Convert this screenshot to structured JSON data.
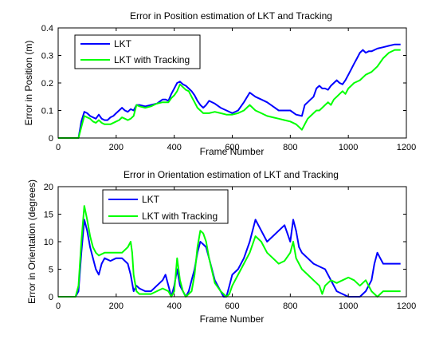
{
  "colors": {
    "lkt": "#0000ff",
    "tracking": "#00ff00"
  },
  "chart_data": [
    {
      "type": "line",
      "title": "Error in Position estimation of LKT and Tracking",
      "xlabel": "Frame Number",
      "ylabel": "Error in Position (m)",
      "xlim": [
        0,
        1200
      ],
      "ylim": [
        0,
        0.4
      ],
      "xticks": [
        "0",
        "200",
        "400",
        "600",
        "800",
        "1000",
        "1200"
      ],
      "yticks": [
        "0",
        "0.1",
        "0.2",
        "0.3",
        "0.4"
      ],
      "legend_position": "top-left",
      "series": [
        {
          "name": "LKT",
          "color": "#0000ff",
          "x": [
            0,
            50,
            70,
            80,
            90,
            100,
            110,
            120,
            130,
            140,
            150,
            160,
            170,
            180,
            190,
            200,
            210,
            220,
            230,
            240,
            250,
            260,
            270,
            280,
            300,
            320,
            340,
            360,
            370,
            380,
            390,
            400,
            410,
            420,
            430,
            440,
            450,
            460,
            470,
            480,
            490,
            500,
            510,
            520,
            540,
            560,
            580,
            600,
            620,
            640,
            660,
            680,
            700,
            720,
            740,
            760,
            780,
            800,
            820,
            840,
            850,
            860,
            870,
            880,
            890,
            900,
            910,
            920,
            930,
            940,
            950,
            960,
            970,
            980,
            990,
            1000,
            1010,
            1020,
            1030,
            1040,
            1050,
            1060,
            1070,
            1080,
            1090,
            1100,
            1120,
            1140,
            1160,
            1180
          ],
          "y": [
            0.0,
            0.0,
            0.0,
            0.06,
            0.095,
            0.09,
            0.08,
            0.075,
            0.07,
            0.085,
            0.07,
            0.065,
            0.065,
            0.075,
            0.08,
            0.09,
            0.1,
            0.11,
            0.1,
            0.095,
            0.105,
            0.1,
            0.12,
            0.12,
            0.115,
            0.12,
            0.125,
            0.14,
            0.14,
            0.135,
            0.16,
            0.18,
            0.2,
            0.205,
            0.195,
            0.19,
            0.18,
            0.17,
            0.155,
            0.135,
            0.12,
            0.11,
            0.12,
            0.135,
            0.125,
            0.11,
            0.1,
            0.09,
            0.1,
            0.13,
            0.165,
            0.15,
            0.14,
            0.13,
            0.115,
            0.1,
            0.1,
            0.1,
            0.085,
            0.08,
            0.12,
            0.13,
            0.14,
            0.15,
            0.18,
            0.19,
            0.18,
            0.18,
            0.175,
            0.19,
            0.2,
            0.21,
            0.2,
            0.195,
            0.21,
            0.23,
            0.25,
            0.27,
            0.29,
            0.31,
            0.32,
            0.31,
            0.315,
            0.315,
            0.32,
            0.325,
            0.33,
            0.335,
            0.34,
            0.34
          ]
        },
        {
          "name": "LKT with Tracking",
          "color": "#00ff00",
          "x": [
            0,
            50,
            70,
            80,
            90,
            100,
            110,
            120,
            130,
            140,
            150,
            160,
            180,
            200,
            210,
            220,
            230,
            240,
            250,
            260,
            270,
            280,
            300,
            320,
            340,
            360,
            380,
            390,
            400,
            410,
            420,
            430,
            440,
            450,
            460,
            470,
            480,
            490,
            500,
            520,
            540,
            560,
            580,
            600,
            620,
            640,
            660,
            680,
            700,
            720,
            740,
            760,
            780,
            800,
            820,
            830,
            840,
            850,
            860,
            870,
            880,
            890,
            900,
            910,
            920,
            930,
            940,
            950,
            960,
            970,
            980,
            990,
            1000,
            1010,
            1020,
            1040,
            1060,
            1080,
            1100,
            1120,
            1140,
            1160,
            1180
          ],
          "y": [
            0.0,
            0.0,
            0.0,
            0.04,
            0.08,
            0.075,
            0.07,
            0.06,
            0.055,
            0.065,
            0.055,
            0.05,
            0.05,
            0.06,
            0.065,
            0.075,
            0.07,
            0.065,
            0.07,
            0.08,
            0.12,
            0.115,
            0.11,
            0.115,
            0.125,
            0.13,
            0.13,
            0.145,
            0.155,
            0.17,
            0.195,
            0.185,
            0.175,
            0.17,
            0.15,
            0.13,
            0.11,
            0.1,
            0.09,
            0.09,
            0.095,
            0.09,
            0.085,
            0.085,
            0.09,
            0.1,
            0.12,
            0.1,
            0.09,
            0.08,
            0.075,
            0.07,
            0.065,
            0.06,
            0.05,
            0.04,
            0.03,
            0.05,
            0.07,
            0.08,
            0.09,
            0.1,
            0.1,
            0.11,
            0.12,
            0.13,
            0.12,
            0.14,
            0.15,
            0.16,
            0.17,
            0.16,
            0.18,
            0.19,
            0.2,
            0.21,
            0.23,
            0.24,
            0.26,
            0.29,
            0.31,
            0.32,
            0.32
          ]
        }
      ]
    },
    {
      "type": "line",
      "title": "Error in Orientation estimation of LKT and Tracking",
      "xlabel": "Frame Number",
      "ylabel": "Error in Orientation (degrees)",
      "xlim": [
        0,
        1200
      ],
      "ylim": [
        0,
        20
      ],
      "xticks": [
        "0",
        "200",
        "400",
        "600",
        "800",
        "1000",
        "1200"
      ],
      "yticks": [
        "0",
        "5",
        "10",
        "15",
        "20"
      ],
      "legend_position": "top-left",
      "series": [
        {
          "name": "LKT",
          "color": "#0000ff",
          "x": [
            0,
            60,
            70,
            80,
            90,
            100,
            110,
            120,
            130,
            140,
            150,
            160,
            180,
            200,
            220,
            240,
            250,
            260,
            270,
            280,
            300,
            320,
            340,
            360,
            370,
            380,
            390,
            400,
            410,
            420,
            430,
            440,
            450,
            460,
            470,
            480,
            490,
            500,
            510,
            520,
            540,
            560,
            570,
            580,
            590,
            600,
            620,
            640,
            660,
            680,
            700,
            720,
            740,
            760,
            780,
            800,
            810,
            820,
            830,
            840,
            860,
            880,
            900,
            920,
            940,
            960,
            980,
            1000,
            1020,
            1040,
            1060,
            1080,
            1090,
            1100,
            1110,
            1120,
            1140,
            1160,
            1180
          ],
          "y": [
            0.0,
            0.0,
            1.0,
            8.0,
            14.0,
            12.0,
            9.0,
            7.0,
            5.0,
            4.0,
            6.0,
            7.0,
            6.5,
            7.0,
            7.0,
            6.0,
            4.0,
            1.0,
            2.0,
            1.5,
            1.0,
            1.0,
            2.0,
            3.0,
            4.0,
            2.0,
            0.0,
            2.0,
            5.0,
            2.0,
            1.0,
            0.0,
            1.0,
            3.0,
            5.0,
            8.0,
            10.0,
            9.5,
            9.0,
            7.0,
            3.0,
            1.0,
            0.0,
            0.0,
            2.0,
            4.0,
            5.0,
            7.0,
            10.0,
            14.0,
            12.0,
            10.0,
            11.0,
            12.0,
            13.0,
            10.0,
            14.0,
            12.0,
            9.0,
            8.0,
            7.0,
            6.0,
            5.5,
            5.0,
            3.0,
            1.0,
            0.5,
            0.0,
            0.0,
            0.0,
            1.0,
            3.0,
            6.0,
            8.0,
            7.0,
            6.0,
            6.0,
            6.0,
            6.0
          ]
        },
        {
          "name": "LKT with Tracking",
          "color": "#00ff00",
          "x": [
            0,
            60,
            70,
            80,
            90,
            100,
            110,
            120,
            130,
            140,
            160,
            180,
            200,
            220,
            240,
            250,
            255,
            260,
            270,
            280,
            300,
            320,
            340,
            360,
            380,
            390,
            400,
            410,
            420,
            430,
            440,
            460,
            470,
            480,
            490,
            500,
            510,
            520,
            540,
            560,
            580,
            590,
            600,
            620,
            640,
            660,
            680,
            700,
            720,
            740,
            760,
            780,
            800,
            810,
            820,
            840,
            860,
            880,
            900,
            910,
            920,
            940,
            960,
            980,
            1000,
            1020,
            1040,
            1060,
            1080,
            1100,
            1120,
            1140,
            1160,
            1180
          ],
          "y": [
            0.0,
            0.0,
            2.0,
            10.0,
            16.5,
            14.0,
            11.0,
            9.0,
            8.0,
            7.5,
            8.0,
            8.0,
            8.0,
            8.0,
            9.0,
            10.0,
            8.0,
            4.0,
            1.0,
            0.5,
            0.5,
            0.5,
            1.0,
            1.5,
            1.0,
            0.0,
            1.0,
            7.0,
            3.0,
            1.0,
            0.0,
            1.0,
            4.0,
            9.0,
            12.0,
            11.5,
            10.0,
            7.0,
            2.5,
            1.0,
            0.0,
            0.5,
            2.0,
            4.0,
            6.0,
            8.0,
            11.0,
            10.0,
            8.0,
            7.0,
            6.0,
            6.5,
            8.0,
            10.0,
            7.0,
            5.0,
            4.0,
            3.0,
            2.0,
            0.5,
            2.0,
            3.0,
            2.5,
            3.0,
            3.5,
            3.0,
            2.0,
            3.0,
            1.0,
            0.0,
            1.0,
            1.0,
            1.0,
            1.0
          ]
        }
      ]
    }
  ]
}
